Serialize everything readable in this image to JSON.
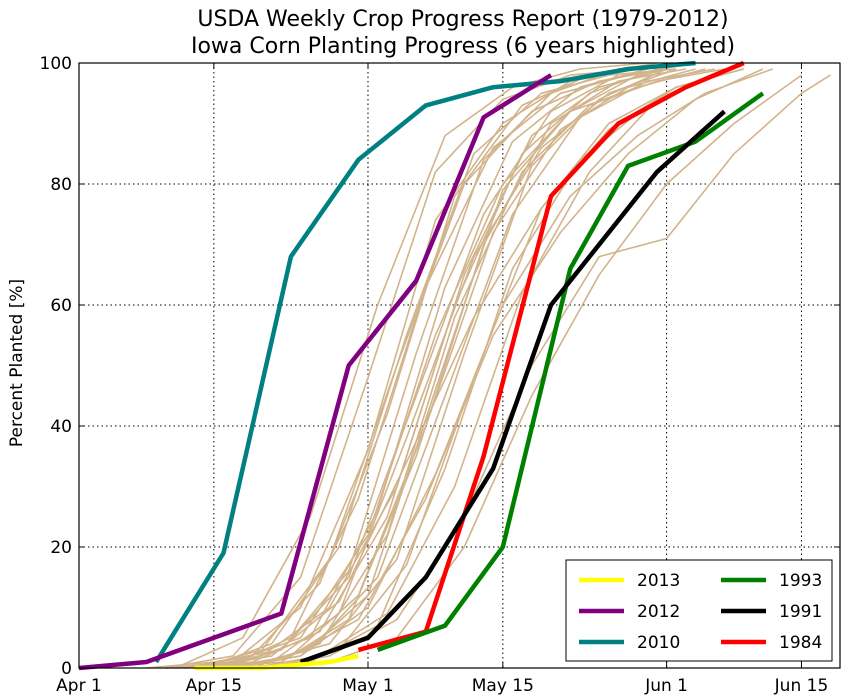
{
  "chart_data": {
    "type": "line",
    "title": "USDA Weekly Crop Progress Report (1979-2012)",
    "subtitle": "Iowa Corn Planting Progress (6 years highlighted)",
    "xlabel": "",
    "ylabel": "Percent Planted [%]",
    "x_unit": "day of year",
    "xlim": [
      91,
      170
    ],
    "ylim": [
      0,
      100
    ],
    "x_ticks": [
      {
        "value": 91,
        "label": "Apr 1"
      },
      {
        "value": 105,
        "label": "Apr 15"
      },
      {
        "value": 121,
        "label": "May 1"
      },
      {
        "value": 135,
        "label": "May 15"
      },
      {
        "value": 152,
        "label": "Jun 1"
      },
      {
        "value": 166,
        "label": "Jun 15"
      }
    ],
    "y_ticks": [
      0,
      20,
      40,
      60,
      80,
      100
    ],
    "grid": true,
    "legend_position": "bottom-right",
    "background_series_color": "#d2b48c",
    "background_series": [
      {
        "x": [
          100,
          107,
          114,
          121,
          128,
          135,
          142,
          149
        ],
        "y": [
          0,
          1,
          5,
          22,
          55,
          80,
          92,
          98
        ]
      },
      {
        "x": [
          103,
          110,
          117,
          124,
          131,
          138,
          145,
          152
        ],
        "y": [
          0,
          2,
          10,
          30,
          65,
          88,
          96,
          99
        ]
      },
      {
        "x": [
          105,
          112,
          119,
          126,
          133,
          140,
          147,
          154
        ],
        "y": [
          0,
          1,
          8,
          35,
          70,
          90,
          97,
          99
        ]
      },
      {
        "x": [
          108,
          115,
          122,
          129,
          136,
          143,
          150,
          157
        ],
        "y": [
          0,
          3,
          15,
          45,
          75,
          91,
          97,
          99
        ]
      },
      {
        "x": [
          100,
          107,
          114,
          121,
          128,
          135,
          142,
          149
        ],
        "y": [
          0,
          2,
          15,
          48,
          82,
          94,
          98,
          99
        ]
      },
      {
        "x": [
          104,
          111,
          118,
          125,
          132,
          139,
          146,
          153
        ],
        "y": [
          0,
          4,
          20,
          55,
          85,
          95,
          98,
          99
        ]
      },
      {
        "x": [
          102,
          109,
          116,
          123,
          130,
          137,
          144,
          151
        ],
        "y": [
          0,
          1,
          6,
          25,
          60,
          85,
          95,
          99
        ]
      },
      {
        "x": [
          106,
          113,
          120,
          127,
          134,
          141,
          148,
          155
        ],
        "y": [
          0,
          2,
          12,
          40,
          72,
          89,
          96,
          99
        ]
      },
      {
        "x": [
          101,
          108,
          115,
          122,
          129,
          136,
          143,
          150
        ],
        "y": [
          0,
          5,
          25,
          60,
          88,
          96,
          99,
          100
        ]
      },
      {
        "x": [
          107,
          114,
          121,
          128,
          135,
          142,
          149,
          156,
          163
        ],
        "y": [
          0,
          2,
          10,
          32,
          60,
          78,
          88,
          95,
          99
        ]
      },
      {
        "x": [
          110,
          117,
          124,
          131,
          138,
          145,
          152,
          159,
          166
        ],
        "y": [
          0,
          1,
          5,
          20,
          45,
          65,
          80,
          90,
          98
        ]
      },
      {
        "x": [
          103,
          110,
          117,
          124,
          131,
          138,
          145,
          152
        ],
        "y": [
          0,
          3,
          18,
          50,
          80,
          92,
          97,
          99
        ]
      },
      {
        "x": [
          98,
          105,
          112,
          119,
          126,
          133,
          140,
          147
        ],
        "y": [
          0,
          1,
          3,
          15,
          45,
          75,
          92,
          98
        ]
      },
      {
        "x": [
          109,
          116,
          123,
          130,
          137,
          144,
          151,
          158
        ],
        "y": [
          0,
          4,
          22,
          58,
          82,
          93,
          97,
          99
        ]
      },
      {
        "x": [
          104,
          111,
          118,
          125,
          132,
          139,
          146,
          153
        ],
        "y": [
          0,
          1,
          9,
          38,
          68,
          86,
          95,
          99
        ]
      },
      {
        "x": [
          106,
          113,
          120,
          127,
          134,
          141,
          148,
          155,
          162
        ],
        "y": [
          0,
          2,
          8,
          28,
          55,
          72,
          85,
          94,
          99
        ]
      },
      {
        "x": [
          102,
          109,
          116,
          123,
          130,
          137,
          144,
          151
        ],
        "y": [
          0,
          2,
          14,
          42,
          78,
          93,
          98,
          100
        ]
      },
      {
        "x": [
          108,
          115,
          122,
          129,
          136,
          143,
          150,
          157
        ],
        "y": [
          0,
          1,
          7,
          33,
          66,
          84,
          93,
          98
        ]
      },
      {
        "x": [
          105,
          112,
          119,
          126,
          133,
          140,
          147,
          154
        ],
        "y": [
          0,
          3,
          16,
          52,
          84,
          95,
          99,
          100
        ]
      },
      {
        "x": [
          110,
          117,
          124,
          131,
          138,
          145,
          152,
          159,
          166,
          169
        ],
        "y": [
          0,
          2,
          8,
          25,
          50,
          68,
          71,
          85,
          95,
          98
        ]
      },
      {
        "x": [
          100,
          107,
          114,
          121,
          128,
          135,
          142,
          149
        ],
        "y": [
          0,
          1,
          10,
          36,
          74,
          90,
          97,
          99
        ]
      },
      {
        "x": [
          107,
          114,
          121,
          128,
          135,
          142,
          149,
          156
        ],
        "y": [
          0,
          2,
          12,
          46,
          79,
          92,
          96,
          99
        ]
      },
      {
        "x": [
          103,
          110,
          117,
          124,
          131,
          138,
          145,
          152
        ],
        "y": [
          0,
          1,
          4,
          18,
          52,
          83,
          94,
          99
        ]
      },
      {
        "x": [
          109,
          116,
          123,
          130,
          137,
          144,
          151,
          158
        ],
        "y": [
          0,
          2,
          9,
          30,
          62,
          82,
          94,
          99
        ]
      },
      {
        "x": [
          104,
          111,
          118,
          125,
          132,
          139,
          146,
          153,
          160
        ],
        "y": [
          0,
          2,
          11,
          34,
          58,
          76,
          89,
          96,
          99
        ]
      },
      {
        "x": [
          106,
          113,
          120,
          127,
          134,
          141,
          148,
          155
        ],
        "y": [
          0,
          5,
          28,
          63,
          86,
          95,
          98,
          100
        ]
      },
      {
        "x": [
          101,
          108,
          115,
          122,
          129,
          136,
          143,
          150
        ],
        "y": [
          0,
          1,
          5,
          26,
          63,
          87,
          96,
          99
        ]
      },
      {
        "x": [
          111,
          118,
          125,
          132,
          139,
          146,
          153,
          160
        ],
        "y": [
          0,
          3,
          17,
          48,
          76,
          90,
          96,
          99
        ]
      }
    ],
    "series": [
      {
        "name": "2013",
        "color": "#ffff00",
        "x": [
          103,
          110,
          117,
          120
        ],
        "y": [
          0,
          0,
          1,
          2
        ]
      },
      {
        "name": "2012",
        "color": "#800080",
        "x": [
          91,
          98,
          105,
          112,
          119,
          126,
          133,
          140
        ],
        "y": [
          0,
          1,
          5,
          9,
          50,
          64,
          91,
          98
        ]
      },
      {
        "name": "2010",
        "color": "#008080",
        "x": [
          99,
          106,
          113,
          120,
          127,
          134,
          141,
          148,
          155
        ],
        "y": [
          1,
          19,
          68,
          84,
          93,
          96,
          97,
          99,
          100
        ]
      },
      {
        "name": "1993",
        "color": "#008000",
        "x": [
          122,
          129,
          135,
          142,
          148,
          155,
          162
        ],
        "y": [
          3,
          7,
          20,
          66,
          83,
          87,
          95
        ]
      },
      {
        "name": "1991",
        "color": "#000000",
        "x": [
          114,
          121,
          127,
          134,
          140,
          151,
          158
        ],
        "y": [
          1,
          5,
          15,
          33,
          60,
          82,
          92
        ]
      },
      {
        "name": "1984",
        "color": "#ff0000",
        "x": [
          120,
          127,
          133,
          140,
          147,
          154,
          160
        ],
        "y": [
          3,
          6,
          35,
          78,
          90,
          96,
          100
        ]
      }
    ]
  }
}
